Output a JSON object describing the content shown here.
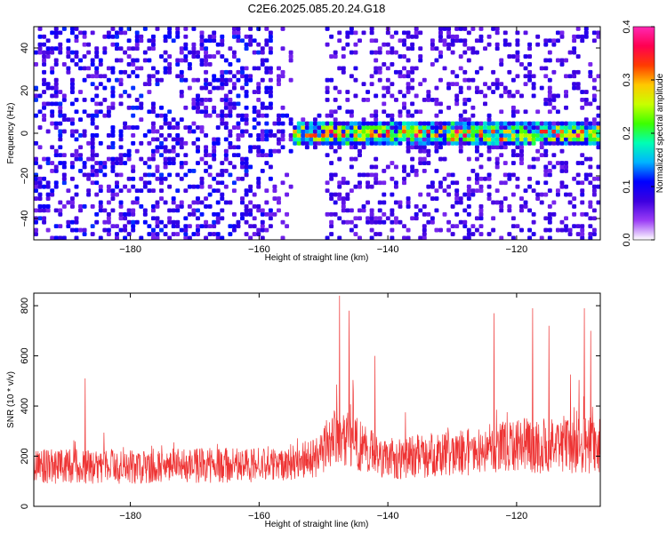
{
  "chart_data": [
    {
      "type": "heatmap",
      "title": "C2E6.2025.085.20.24.G18",
      "xlabel": "Height of straight line (km)",
      "ylabel": "Frequency (Hz)",
      "xlim": [
        -195,
        -107
      ],
      "ylim": [
        -50,
        50
      ],
      "xticks": [
        -180,
        -160,
        -140,
        -120
      ],
      "yticks": [
        -40,
        -20,
        0,
        20,
        40
      ],
      "colorbar": {
        "label": "Normalized spectral amplitude",
        "range": [
          0.0,
          0.4
        ],
        "ticks": [
          0.0,
          0.1,
          0.2,
          0.3,
          0.4
        ],
        "colors": [
          "#ffffff",
          "#9a3cf5",
          "#3c00e0",
          "#0000ff",
          "#00b4ff",
          "#00ffb4",
          "#3cff00",
          "#c8ff00",
          "#ffc800",
          "#ff3c00",
          "#ff0050",
          "#ff28b4"
        ]
      },
      "signal_band": {
        "x_start": -155,
        "x_end": -107,
        "center_freq": 0,
        "halfwidth": 6
      },
      "grid": false
    },
    {
      "type": "line",
      "xlabel": "Height of straight line (km)",
      "ylabel": "SNR (10 * v/v)",
      "xlim": [
        -195,
        -107
      ],
      "ylim": [
        0,
        850
      ],
      "xticks": [
        -180,
        -160,
        -140,
        -120
      ],
      "yticks": [
        0,
        200,
        400,
        600,
        800
      ],
      "line_color": "#ee3333",
      "envelope": [
        {
          "x": -195,
          "base": 160,
          "spread": 70
        },
        {
          "x": -180,
          "base": 160,
          "spread": 70
        },
        {
          "x": -160,
          "base": 165,
          "spread": 70
        },
        {
          "x": -152,
          "base": 185,
          "spread": 80
        },
        {
          "x": -148,
          "base": 280,
          "spread": 120
        },
        {
          "x": -145,
          "base": 250,
          "spread": 110
        },
        {
          "x": -140,
          "base": 190,
          "spread": 85
        },
        {
          "x": -130,
          "base": 210,
          "spread": 90
        },
        {
          "x": -120,
          "base": 240,
          "spread": 110
        },
        {
          "x": -107,
          "base": 250,
          "spread": 120
        }
      ],
      "peaks": [
        {
          "x": -187,
          "y": 510
        },
        {
          "x": -147.5,
          "y": 840
        },
        {
          "x": -146,
          "y": 780
        },
        {
          "x": -142,
          "y": 600
        },
        {
          "x": -123.5,
          "y": 770
        },
        {
          "x": -117.5,
          "y": 790
        },
        {
          "x": -115,
          "y": 720
        },
        {
          "x": -109.5,
          "y": 790
        },
        {
          "x": -108.5,
          "y": 700
        }
      ],
      "grid": false
    }
  ]
}
